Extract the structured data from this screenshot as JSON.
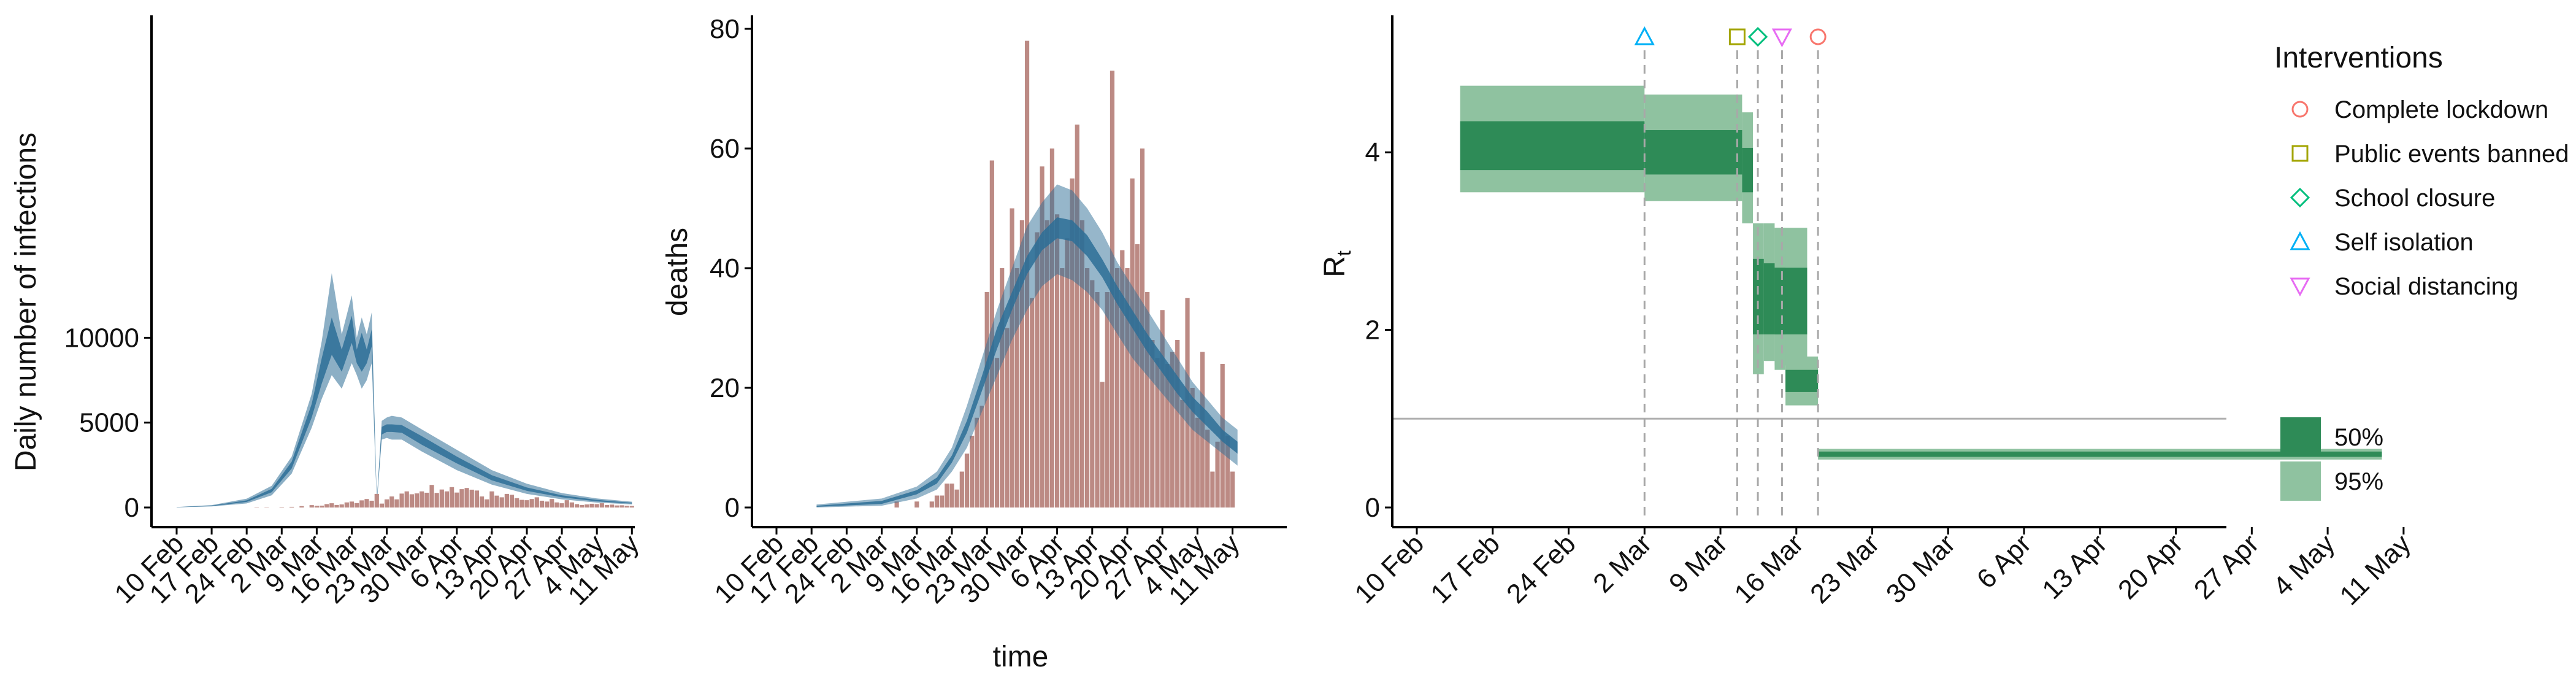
{
  "chart_data": [
    {
      "type": "bar",
      "xlabel": "",
      "ylabel": "Daily number of infections",
      "ylim": [
        0,
        14000
      ],
      "yticks": [
        0,
        5000,
        10000
      ],
      "xticks": [
        "10 Feb",
        "17 Feb",
        "24 Feb",
        "2 Mar",
        "9 Mar",
        "16 Mar",
        "23 Mar",
        "30 Mar",
        "6 Apr",
        "13 Apr",
        "20 Apr",
        "27 Apr",
        "4 May",
        "11 May"
      ],
      "bar_color": "#bc8a84",
      "band_color": "#2d6e96",
      "bars": {
        "x": [
          "26 Feb",
          "28 Feb",
          "2 Mar",
          "4 Mar",
          "6 Mar",
          "8 Mar",
          "9 Mar",
          "10 Mar",
          "11 Mar",
          "12 Mar",
          "13 Mar",
          "14 Mar",
          "15 Mar",
          "16 Mar",
          "17 Mar",
          "18 Mar",
          "19 Mar",
          "20 Mar",
          "21 Mar",
          "22 Mar",
          "23 Mar",
          "24 Mar",
          "25 Mar",
          "26 Mar",
          "27 Mar",
          "28 Mar",
          "29 Mar",
          "30 Mar",
          "31 Mar",
          "1 Apr",
          "2 Apr",
          "3 Apr",
          "4 Apr",
          "5 Apr",
          "6 Apr",
          "7 Apr",
          "8 Apr",
          "9 Apr",
          "10 Apr",
          "11 Apr",
          "12 Apr",
          "13 Apr",
          "14 Apr",
          "15 Apr",
          "16 Apr",
          "17 Apr",
          "18 Apr",
          "19 Apr",
          "20 Apr",
          "21 Apr",
          "22 Apr",
          "23 Apr",
          "24 Apr",
          "25 Apr",
          "26 Apr",
          "27 Apr",
          "28 Apr",
          "29 Apr",
          "30 Apr",
          "1 May",
          "2 May",
          "3 May",
          "4 May",
          "5 May",
          "6 May",
          "7 May",
          "8 May",
          "9 May",
          "10 May",
          "11 May"
        ],
        "values": [
          10,
          15,
          25,
          40,
          80,
          140,
          100,
          110,
          200,
          250,
          150,
          180,
          300,
          350,
          260,
          420,
          500,
          400,
          800,
          230,
          480,
          650,
          480,
          820,
          950,
          780,
          830,
          950,
          870,
          1330,
          860,
          1060,
          950,
          1200,
          880,
          1080,
          1150,
          1050,
          1000,
          650,
          480,
          950,
          700,
          600,
          800,
          750,
          550,
          450,
          430,
          500,
          600,
          400,
          350,
          500,
          300,
          250,
          430,
          300,
          200,
          150,
          180,
          220,
          200,
          250,
          150,
          170,
          120,
          130,
          100,
          90
        ]
      },
      "band_95": {
        "x": [
          "10 Feb",
          "17 Feb",
          "24 Feb",
          "29 Feb",
          "4 Mar",
          "8 Mar",
          "10 Mar",
          "12 Mar",
          "14 Mar",
          "16 Mar",
          "17 Mar",
          "18 Mar",
          "19 Mar",
          "20 Mar",
          "21 Mar",
          "22 Mar",
          "23 Mar",
          "24 Mar",
          "26 Mar",
          "30 Mar",
          "6 Apr",
          "13 Apr",
          "20 Apr",
          "27 Apr",
          "4 May",
          "11 May"
        ],
        "lower": [
          10,
          60,
          240,
          720,
          2000,
          4700,
          6400,
          7800,
          7000,
          8500,
          7800,
          7000,
          7500,
          8500,
          200,
          4000,
          4100,
          4000,
          4000,
          3300,
          2200,
          1350,
          800,
          480,
          290,
          180
        ],
        "upper": [
          30,
          140,
          520,
          1280,
          3000,
          6700,
          9800,
          13800,
          10200,
          12500,
          10000,
          11200,
          10200,
          11500,
          400,
          5100,
          5300,
          5400,
          5300,
          4600,
          3400,
          2200,
          1400,
          850,
          530,
          340
        ]
      },
      "band_50": {
        "x": [
          "10 Feb",
          "17 Feb",
          "24 Feb",
          "29 Feb",
          "4 Mar",
          "8 Mar",
          "10 Mar",
          "12 Mar",
          "14 Mar",
          "16 Mar",
          "17 Mar",
          "18 Mar",
          "19 Mar",
          "20 Mar",
          "21 Mar",
          "22 Mar",
          "23 Mar",
          "24 Mar",
          "26 Mar",
          "30 Mar",
          "6 Apr",
          "13 Apr",
          "20 Apr",
          "27 Apr",
          "4 May",
          "11 May"
        ],
        "lower": [
          15,
          80,
          330,
          900,
          2300,
          5300,
          7300,
          9000,
          8000,
          9700,
          8500,
          8000,
          8500,
          9500,
          250,
          4300,
          4450,
          4450,
          4400,
          3700,
          2600,
          1600,
          980,
          600,
          360,
          230
        ],
        "upper": [
          22,
          110,
          420,
          1100,
          2700,
          6100,
          8800,
          11200,
          9300,
          11300,
          9300,
          10300,
          9300,
          10500,
          350,
          4750,
          4900,
          4900,
          4850,
          4200,
          3000,
          1900,
          1180,
          720,
          450,
          280
        ]
      }
    },
    {
      "type": "bar",
      "xlabel": "time",
      "ylabel": "deaths",
      "ylim": [
        0,
        80
      ],
      "yticks": [
        0,
        20,
        40,
        60,
        80
      ],
      "xticks": [
        "10 Feb",
        "17 Feb",
        "24 Feb",
        "2 Mar",
        "9 Mar",
        "16 Mar",
        "23 Mar",
        "30 Mar",
        "6 Apr",
        "13 Apr",
        "20 Apr",
        "27 Apr",
        "4 May",
        "11 May"
      ],
      "bar_color": "#bc8a84",
      "band_color": "#2d6e96",
      "bars": {
        "x": [
          "5 Mar",
          "9 Mar",
          "12 Mar",
          "13 Mar",
          "14 Mar",
          "15 Mar",
          "16 Mar",
          "17 Mar",
          "18 Mar",
          "19 Mar",
          "20 Mar",
          "21 Mar",
          "22 Mar",
          "23 Mar",
          "24 Mar",
          "25 Mar",
          "26 Mar",
          "27 Mar",
          "28 Mar",
          "29 Mar",
          "30 Mar",
          "31 Mar",
          "1 Apr",
          "2 Apr",
          "3 Apr",
          "4 Apr",
          "5 Apr",
          "6 Apr",
          "7 Apr",
          "8 Apr",
          "9 Apr",
          "10 Apr",
          "11 Apr",
          "12 Apr",
          "13 Apr",
          "14 Apr",
          "15 Apr",
          "16 Apr",
          "17 Apr",
          "18 Apr",
          "19 Apr",
          "20 Apr",
          "21 Apr",
          "22 Apr",
          "23 Apr",
          "24 Apr",
          "25 Apr",
          "26 Apr",
          "27 Apr",
          "28 Apr",
          "29 Apr",
          "30 Apr",
          "1 May",
          "2 May",
          "3 May",
          "4 May",
          "5 May",
          "6 May",
          "7 May",
          "8 May",
          "9 May",
          "10 May",
          "11 May"
        ],
        "values": [
          1,
          1,
          1,
          2,
          2,
          4,
          4,
          3,
          6,
          9,
          12,
          15,
          17,
          36,
          58,
          25,
          40,
          30,
          50,
          40,
          48,
          78,
          35,
          46,
          57,
          48,
          60,
          49,
          40,
          45,
          55,
          64,
          48,
          40,
          38,
          36,
          21,
          36,
          73,
          40,
          43,
          40,
          55,
          44,
          60,
          36,
          28,
          25,
          33,
          24,
          26,
          28,
          18,
          35,
          20,
          15,
          26,
          13,
          6,
          11,
          24,
          12,
          6
        ]
      },
      "band_95": {
        "x": [
          "18 Feb",
          "2 Mar",
          "9 Mar",
          "13 Mar",
          "16 Mar",
          "19 Mar",
          "22 Mar",
          "25 Mar",
          "28 Mar",
          "31 Mar",
          "3 Apr",
          "6 Apr",
          "9 Apr",
          "12 Apr",
          "15 Apr",
          "18 Apr",
          "21 Apr",
          "24 Apr",
          "27 Apr",
          "30 Apr",
          "3 May",
          "6 May",
          "9 May",
          "12 May"
        ],
        "lower": [
          0,
          0.3,
          1.5,
          3,
          6,
          10,
          16,
          22,
          28,
          33,
          37,
          39,
          38,
          36,
          33,
          29,
          25,
          22,
          19,
          16,
          13,
          11,
          9,
          7
        ],
        "upper": [
          0.5,
          1.5,
          3.5,
          6,
          10,
          17,
          25,
          33,
          40,
          47,
          51,
          54,
          53,
          50,
          46,
          41,
          37,
          33,
          29,
          25,
          21,
          18,
          15,
          13
        ]
      },
      "band_50": {
        "x": [
          "18 Feb",
          "2 Mar",
          "9 Mar",
          "13 Mar",
          "16 Mar",
          "19 Mar",
          "22 Mar",
          "25 Mar",
          "28 Mar",
          "31 Mar",
          "3 Apr",
          "6 Apr",
          "9 Apr",
          "12 Apr",
          "15 Apr",
          "18 Apr",
          "21 Apr",
          "24 Apr",
          "27 Apr",
          "30 Apr",
          "3 May",
          "6 May",
          "9 May",
          "12 May"
        ],
        "lower": [
          0.1,
          0.6,
          2.2,
          4,
          7.5,
          12.5,
          19.5,
          26.5,
          33,
          39,
          43,
          45,
          44.5,
          42,
          38.5,
          34,
          30,
          26,
          22.5,
          19,
          16,
          13.5,
          11,
          9
        ],
        "upper": [
          0.3,
          1.1,
          2.9,
          5,
          8.7,
          14.5,
          22,
          30,
          36,
          42,
          46,
          48.5,
          48,
          45.5,
          41.5,
          37,
          33,
          29,
          25.5,
          22,
          18.5,
          16,
          13,
          11
        ]
      }
    },
    {
      "type": "area",
      "xlabel": "",
      "ylabel": "R",
      "ylabel_sub": "t",
      "ylim": [
        -0.3,
        5.5
      ],
      "yticks": [
        0,
        2,
        4
      ],
      "xticks": [
        "10 Feb",
        "17 Feb",
        "24 Feb",
        "2 Mar",
        "9 Mar",
        "16 Mar",
        "23 Mar",
        "30 Mar",
        "6 Apr",
        "13 Apr",
        "20 Apr",
        "27 Apr",
        "4 May",
        "11 May"
      ],
      "reference_line": 1,
      "band_50_color": "#2e8b57",
      "band_95_color": "#8fc2a0",
      "steps": [
        {
          "start": "14 Feb",
          "end": "2 Mar",
          "lower_95": 3.55,
          "upper_95": 4.75,
          "lower_50": 3.8,
          "upper_50": 4.35
        },
        {
          "start": "2 Mar",
          "end": "11 Mar",
          "lower_95": 3.45,
          "upper_95": 4.65,
          "lower_50": 3.75,
          "upper_50": 4.25
        },
        {
          "start": "11 Mar",
          "end": "12 Mar",
          "lower_95": 3.2,
          "upper_95": 4.45,
          "lower_50": 3.55,
          "upper_50": 4.05
        },
        {
          "start": "12 Mar",
          "end": "13 Mar",
          "lower_95": 1.5,
          "upper_95": 3.2,
          "lower_50": 1.95,
          "upper_50": 2.8
        },
        {
          "start": "13 Mar",
          "end": "14 Mar",
          "lower_95": 1.65,
          "upper_95": 3.2,
          "lower_50": 1.95,
          "upper_50": 2.75
        },
        {
          "start": "14 Mar",
          "end": "17 Mar",
          "lower_95": 1.6,
          "upper_95": 3.15,
          "lower_50": 1.95,
          "upper_50": 2.7
        },
        {
          "start": "14 Mar",
          "end": "15 Mar",
          "lower_95": 1.55,
          "upper_95": 3.15,
          "lower_50": 1.95,
          "upper_50": 2.7
        },
        {
          "start": "15 Mar",
          "end": "18 Mar",
          "lower_95": 1.15,
          "upper_95": 1.7,
          "lower_50": 1.3,
          "upper_50": 1.55
        },
        {
          "start": "18 Mar",
          "end": "9 May",
          "lower_95": 0.54,
          "upper_95": 0.66,
          "lower_50": 0.57,
          "upper_50": 0.63
        }
      ],
      "interventions": [
        {
          "name": "Complete lockdown",
          "date": "18 Mar",
          "shape": "circle",
          "color": "#f8766d"
        },
        {
          "name": "Public events banned",
          "date": "11 Mar",
          "shape": "square",
          "color": "#a3a500"
        },
        {
          "name": "School closure",
          "date": "12 Mar",
          "shape": "diamond",
          "color": "#00bf7d"
        },
        {
          "name": "Self isolation",
          "date": "2 Mar",
          "shape": "triangle-up",
          "color": "#00b0f6"
        },
        {
          "name": "Social distancing",
          "date": "14 Mar",
          "shape": "triangle-down",
          "color": "#e76bf3"
        }
      ],
      "legend": {
        "title": "Interventions",
        "placement": "right",
        "items": [
          "Complete lockdown",
          "Public events banned",
          "School closure",
          "Self isolation",
          "Social distancing"
        ],
        "band_items": [
          "50%",
          "95%"
        ]
      }
    }
  ]
}
